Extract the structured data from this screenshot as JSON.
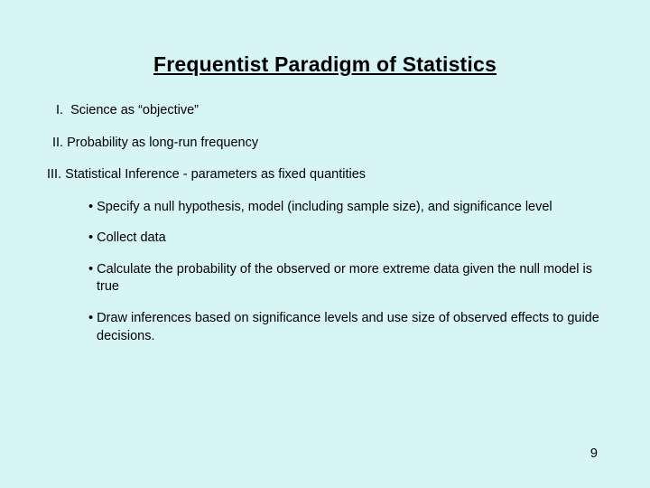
{
  "background_color": "#d8f5f5",
  "text_color": "#000000",
  "font_family": "Arial",
  "title": {
    "text": " Frequentist Paradigm of Statistics",
    "fontsize": 23,
    "bold": true,
    "underline": true,
    "align": "center"
  },
  "items": [
    {
      "numeral": "I.",
      "text": "Science as “objective”"
    },
    {
      "numeral": "II.",
      "text": "Probability as long-run frequency"
    },
    {
      "numeral": "III.",
      "text": "Statistical Inference - parameters as fixed quantities"
    }
  ],
  "bullets": [
    "Specify a null hypothesis, model (including sample size), and significance level",
    "Collect data",
    "Calculate the probability of the observed or more extreme data given the null model is true",
    "Draw inferences based on significance levels and use size of observed effects to guide decisions."
  ],
  "body_fontsize": 14.5,
  "page_number": "9"
}
